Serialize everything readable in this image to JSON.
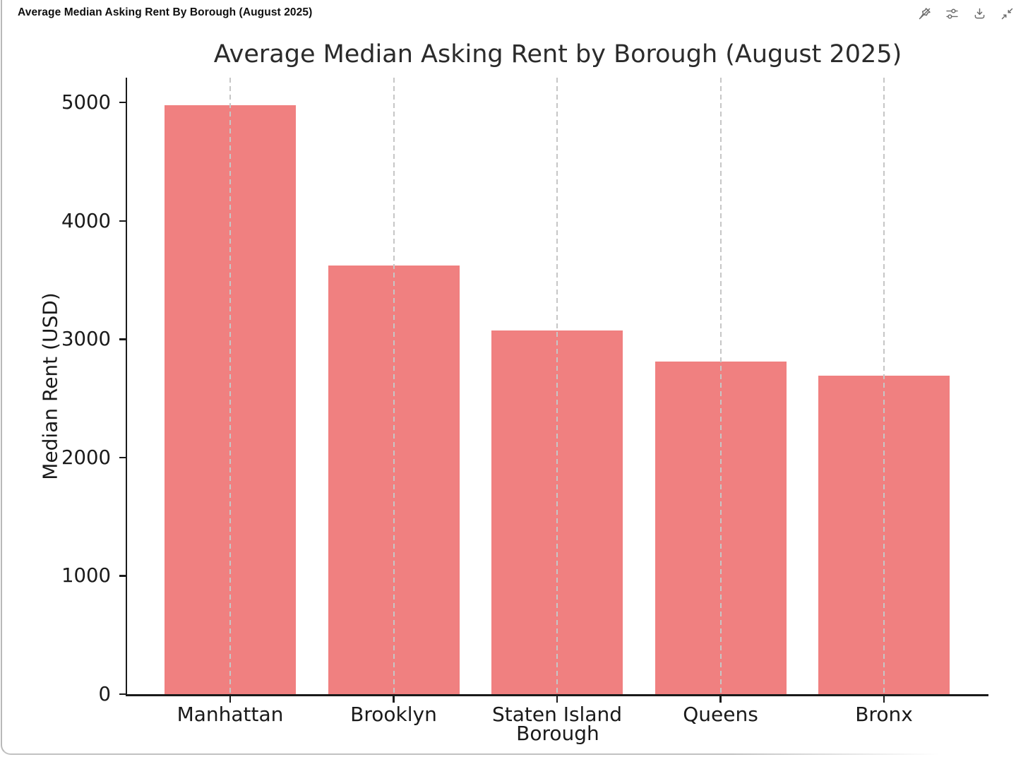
{
  "panel": {
    "title": "Average Median Asking Rent By Borough (August 2025)"
  },
  "toolbar": {
    "buttons": [
      {
        "name": "unpin",
        "icon": "unpin-icon"
      },
      {
        "name": "settings",
        "icon": "sliders-icon"
      },
      {
        "name": "download",
        "icon": "download-icon"
      },
      {
        "name": "collapse",
        "icon": "collapse-icon"
      }
    ]
  },
  "chart_data": {
    "type": "bar",
    "title": "Average Median Asking Rent by Borough (August 2025)",
    "xlabel": "Borough",
    "ylabel": "Median Rent (USD)",
    "categories": [
      "Manhattan",
      "Brooklyn",
      "Staten Island",
      "Queens",
      "Bronx"
    ],
    "values": [
      4975,
      3625,
      3075,
      2810,
      2690
    ],
    "yticks": [
      0,
      1000,
      2000,
      3000,
      4000,
      5000
    ],
    "ylim": [
      0,
      5210
    ],
    "bar_color": "#F08080",
    "grid": {
      "axis": "x",
      "style": "dashed",
      "color": "#c6c6c6"
    },
    "legend": null
  }
}
